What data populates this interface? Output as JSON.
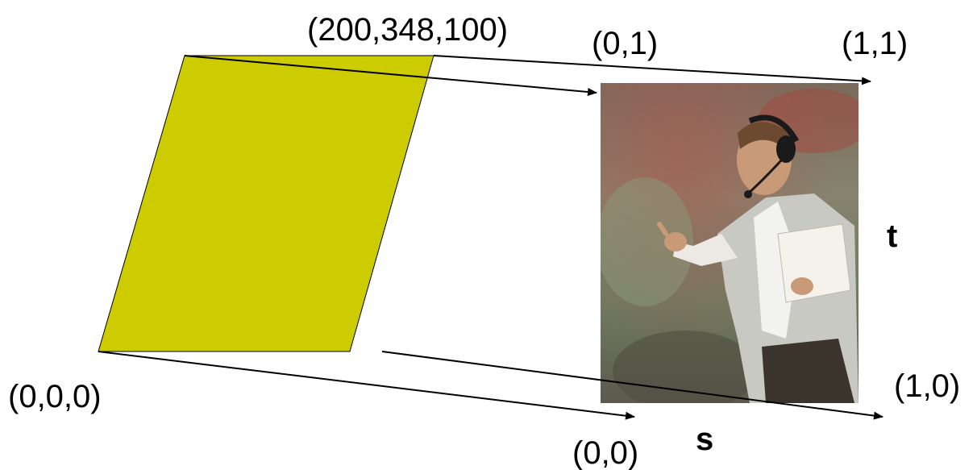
{
  "labels": {
    "top_vertex": "(200,348,100)",
    "origin_vertex": "(0,0,0)",
    "tex_top_left": "(0,1)",
    "tex_top_right": "(1,1)",
    "tex_bottom_left": "(0,0)",
    "tex_bottom_right": "(1,0)",
    "axis_t": "t",
    "axis_s": "s"
  },
  "colors": {
    "quad_fill": "#CCCC00",
    "quad_stroke": "#000000",
    "arrow": "#000000"
  }
}
